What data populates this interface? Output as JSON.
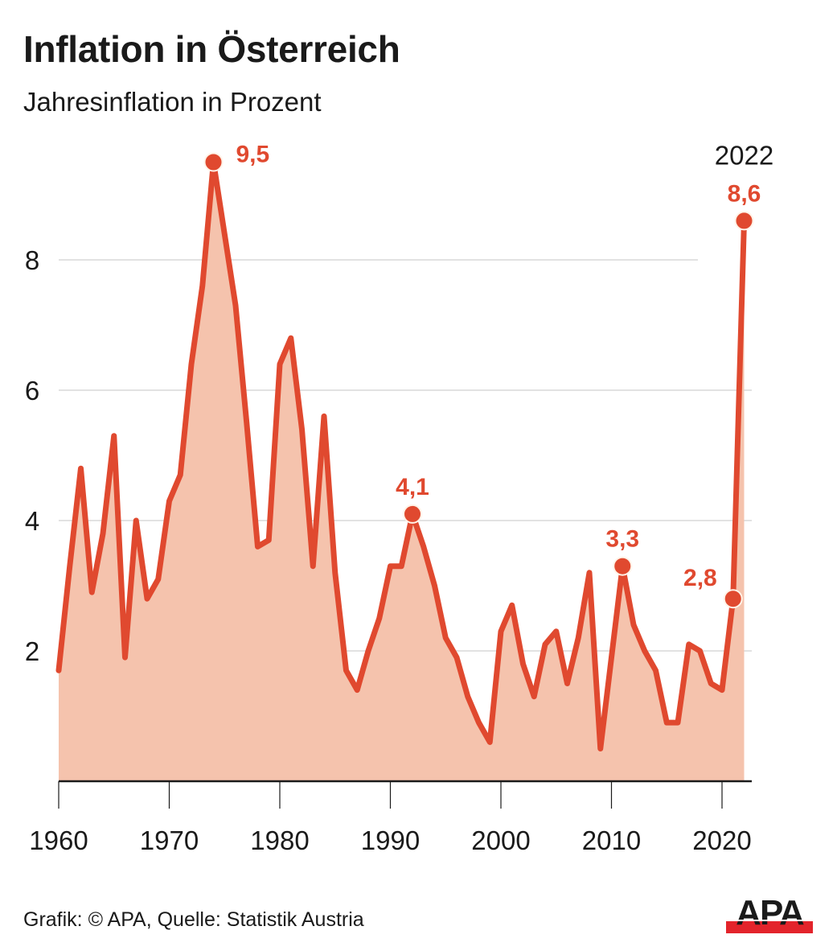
{
  "header": {
    "title": "Inflation in Österreich",
    "subtitle": "Jahresinflation in Prozent"
  },
  "footer": {
    "credit": "Grafik: © APA, Quelle: Statistik Austria",
    "logo_text": "APA",
    "logo_colors": {
      "text": "#1a1a1a",
      "bar": "#e3242b"
    }
  },
  "colors": {
    "line": "#e0492f",
    "fill": "#f5c3ad",
    "label": "#e0492f",
    "grid": "#d9d9d9",
    "axis": "#1a1a1a"
  },
  "chart_data": {
    "type": "area",
    "title": "Inflation in Österreich",
    "subtitle": "Jahresinflation in Prozent",
    "xlabel": "",
    "ylabel": "",
    "xlim": [
      1960,
      2022
    ],
    "ylim": [
      0,
      10
    ],
    "grid": true,
    "x_ticks": [
      1960,
      1970,
      1980,
      1990,
      2000,
      2010,
      2020
    ],
    "x_tick_labels": [
      "1960",
      "1970",
      "1980",
      "1990",
      "2000",
      "2010",
      "2020"
    ],
    "y_ticks": [
      2,
      4,
      6,
      8
    ],
    "y_tick_labels": [
      "2",
      "4",
      "6",
      "8"
    ],
    "x": [
      1960,
      1961,
      1962,
      1963,
      1964,
      1965,
      1966,
      1967,
      1968,
      1969,
      1970,
      1971,
      1972,
      1973,
      1974,
      1975,
      1976,
      1977,
      1978,
      1979,
      1980,
      1981,
      1982,
      1983,
      1984,
      1985,
      1986,
      1987,
      1988,
      1989,
      1990,
      1991,
      1992,
      1993,
      1994,
      1995,
      1996,
      1997,
      1998,
      1999,
      2000,
      2001,
      2002,
      2003,
      2004,
      2005,
      2006,
      2007,
      2008,
      2009,
      2010,
      2011,
      2012,
      2013,
      2014,
      2015,
      2016,
      2017,
      2018,
      2019,
      2020,
      2021,
      2022
    ],
    "values": [
      1.7,
      3.3,
      4.8,
      2.9,
      3.8,
      5.3,
      1.9,
      4.0,
      2.8,
      3.1,
      4.3,
      4.7,
      6.4,
      7.6,
      9.5,
      8.4,
      7.3,
      5.5,
      3.6,
      3.7,
      6.4,
      6.8,
      5.4,
      3.3,
      5.6,
      3.2,
      1.7,
      1.4,
      2.0,
      2.5,
      3.3,
      3.3,
      4.1,
      3.6,
      3.0,
      2.2,
      1.9,
      1.3,
      0.9,
      0.6,
      2.3,
      2.7,
      1.8,
      1.3,
      2.1,
      2.3,
      1.5,
      2.2,
      3.2,
      0.5,
      1.9,
      3.3,
      2.4,
      2.0,
      1.7,
      0.9,
      0.9,
      2.1,
      2.0,
      1.5,
      1.4,
      2.8,
      8.6
    ],
    "annotations": [
      {
        "year": 1974,
        "value": 9.5,
        "label": "9,5",
        "position": "right"
      },
      {
        "year": 1992,
        "value": 4.1,
        "label": "4,1",
        "position": "top"
      },
      {
        "year": 2011,
        "value": 3.3,
        "label": "3,3",
        "position": "top"
      },
      {
        "year": 2021,
        "value": 2.8,
        "label": "2,8",
        "position": "left"
      },
      {
        "year": 2022,
        "value": 8.6,
        "label": "8,6",
        "position": "top",
        "year_label": "2022"
      }
    ]
  }
}
